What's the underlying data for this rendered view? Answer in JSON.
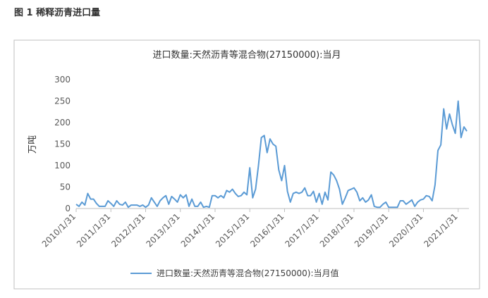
{
  "header": {
    "title": "图 1 稀释沥青进口量"
  },
  "chart_data": {
    "type": "line",
    "title": "进口数量:天然沥青等混合物(27150000):当月",
    "y_label": "万吨",
    "categories": [
      "2010/1/31",
      null,
      null,
      null,
      null,
      null,
      null,
      null,
      null,
      null,
      null,
      null,
      "2011/1/31",
      null,
      null,
      null,
      null,
      null,
      null,
      null,
      null,
      null,
      null,
      null,
      "2012/1/31",
      null,
      null,
      null,
      null,
      null,
      null,
      null,
      null,
      null,
      null,
      null,
      "2013/1/31",
      null,
      null,
      null,
      null,
      null,
      null,
      null,
      null,
      null,
      null,
      null,
      "2014/1/31",
      null,
      null,
      null,
      null,
      null,
      null,
      null,
      null,
      null,
      null,
      null,
      "2015/1/31",
      null,
      null,
      null,
      null,
      null,
      null,
      null,
      null,
      null,
      null,
      null,
      "2016/1/31",
      null,
      null,
      null,
      null,
      null,
      null,
      null,
      null,
      null,
      null,
      null,
      "2017/1/31",
      null,
      null,
      null,
      null,
      null,
      null,
      null,
      null,
      null,
      null,
      null,
      "2018/1/31",
      null,
      null,
      null,
      null,
      null,
      null,
      null,
      null,
      null,
      null,
      null,
      "2019/1/31",
      null,
      null,
      null,
      null,
      null,
      null,
      null,
      null,
      null,
      null,
      null,
      "2020/1/31",
      null,
      null,
      null,
      null,
      null,
      null,
      null,
      null,
      null,
      null,
      null,
      "2021/1/31",
      null,
      null,
      null
    ],
    "series": [
      {
        "name": "进口数量:天然沥青等混合物(27150000):当月值",
        "color": "#5b9bd5",
        "values": [
          10,
          5,
          15,
          8,
          35,
          22,
          22,
          12,
          5,
          5,
          5,
          18,
          12,
          5,
          18,
          10,
          8,
          15,
          3,
          8,
          8,
          8,
          5,
          8,
          3,
          8,
          25,
          15,
          5,
          18,
          25,
          30,
          10,
          28,
          22,
          15,
          32,
          25,
          32,
          5,
          22,
          5,
          5,
          15,
          3,
          5,
          3,
          30,
          30,
          25,
          30,
          25,
          42,
          38,
          45,
          35,
          28,
          30,
          38,
          32,
          95,
          25,
          45,
          100,
          165,
          170,
          130,
          162,
          150,
          145,
          90,
          65,
          100,
          40,
          15,
          35,
          38,
          35,
          38,
          48,
          30,
          30,
          40,
          15,
          35,
          10,
          38,
          20,
          85,
          78,
          65,
          45,
          10,
          25,
          42,
          45,
          48,
          38,
          18,
          25,
          15,
          20,
          32,
          5,
          3,
          3,
          10,
          15,
          3,
          3,
          3,
          3,
          18,
          18,
          10,
          15,
          20,
          5,
          15,
          20,
          22,
          30,
          28,
          18,
          55,
          135,
          148,
          232,
          185,
          220,
          195,
          175,
          250,
          165,
          190,
          180
        ]
      }
    ],
    "ylim": [
      0,
      300
    ],
    "yticks": [
      0,
      50,
      100,
      150,
      200,
      250,
      300
    ],
    "grid": false,
    "legend": "bottom"
  }
}
